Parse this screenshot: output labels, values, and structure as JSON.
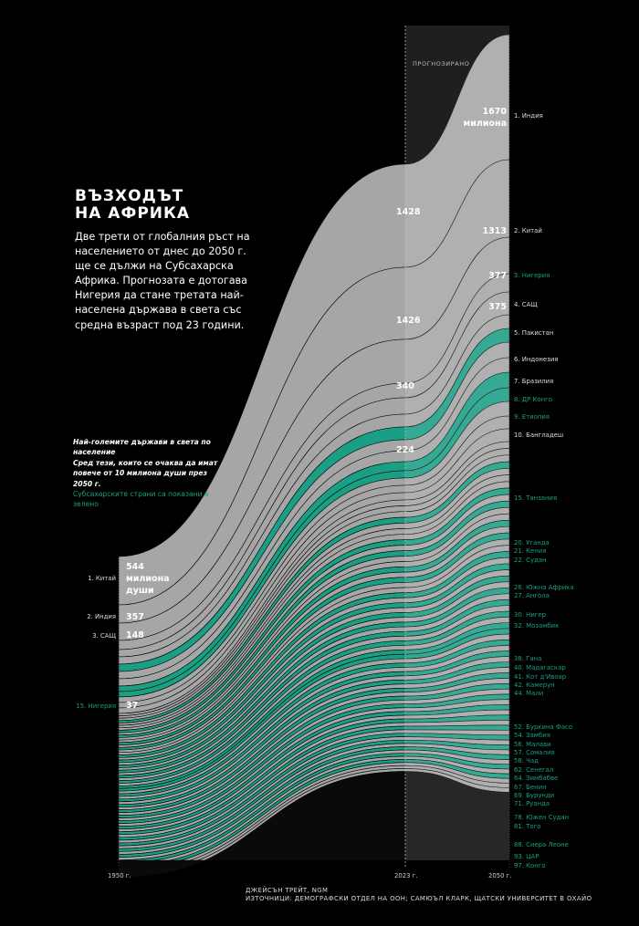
{
  "title": [
    "ВЪЗХОДЪТ",
    "НА АФРИКА"
  ],
  "intro": "Две трети от глобалния ръст на населението от днес до 2050 г. ще се дължи на Субсахарска Африка. Прогнозата е дотогава Нигерия да стане третата най-населена държава в света със средна възраст под 23 години.",
  "legend": {
    "line1": "Най-големите държави в света по население",
    "line2": "Сред тези, които се очаква да имат повече от 10 милиона души през 2050 г.",
    "line3": "Субсахарските страни са показани в зелено"
  },
  "forecast_label": "ПРОГНОЗИРАНО",
  "credits": [
    "ДЖЕЙСЪН ТРЕЙТ, NGM",
    "ИЗТОЧНИЦИ: ДЕМОГРАФСКИ ОТДЕЛ НА ООН; САМЮЪЛ КЛАРК, ЩАТСКИ УНИВЕРСИТЕТ В ОХАЙО"
  ],
  "colors": {
    "background": "#000000",
    "gray": "#a6a6a6",
    "green": "#1a9e84",
    "forecast_shade": "#ffffff"
  },
  "chart_data": {
    "type": "area",
    "x": [
      "1950 г.",
      "2023 г.",
      "2050 г."
    ],
    "unit": "милиона души",
    "value_labels": {
      "1950": [
        {
          "country": "Китай",
          "value": 544,
          "text": "544",
          "extra": [
            "милиона",
            "души"
          ]
        },
        {
          "country": "Индия",
          "value": 357,
          "text": "357"
        },
        {
          "country": "САЩ",
          "value": 148,
          "text": "148"
        },
        {
          "country": "Нигерия",
          "value": 37,
          "text": "37"
        }
      ],
      "2023": [
        {
          "country": "Индия",
          "value": 1428,
          "text": "1428"
        },
        {
          "country": "Китай",
          "value": 1426,
          "text": "1426"
        },
        {
          "country": "САЩ",
          "value": 340,
          "text": "340"
        },
        {
          "country": "Нигерия",
          "value": 224,
          "text": "224"
        }
      ],
      "2050": [
        {
          "country": "Индия",
          "value": 1670,
          "text": "1670",
          "extra": [
            "милиона"
          ]
        },
        {
          "country": "Китай",
          "value": 1313,
          "text": "1313"
        },
        {
          "country": "Нигерия",
          "value": 377,
          "text": "377"
        },
        {
          "country": "САЩ",
          "value": 375,
          "text": "375"
        }
      ]
    },
    "labels_1950": [
      {
        "text": "1. Китай",
        "green": false
      },
      {
        "text": "2. Индия",
        "green": false
      },
      {
        "text": "3. САЩ",
        "green": false
      },
      {
        "text": "15. Нигерия",
        "green": true
      }
    ],
    "ranks_2050": [
      {
        "text": "1. Индия",
        "green": false
      },
      {
        "text": "2. Китай",
        "green": false
      },
      {
        "text": "3. Нигерия",
        "green": true
      },
      {
        "text": "4. САЩ",
        "green": false
      },
      {
        "text": "5. Пакистан",
        "green": false
      },
      {
        "text": "6. Индонезия",
        "green": false
      },
      {
        "text": "7. Бразилия",
        "green": false
      },
      {
        "text": "8. ДР Конго",
        "green": true
      },
      {
        "text": "9. Етиопия",
        "green": true
      },
      {
        "text": "10. Бангладеш",
        "green": false
      },
      {
        "text": "15. Танзания",
        "green": true
      },
      {
        "text": "20. Уганда",
        "green": true
      },
      {
        "text": "21. Кения",
        "green": true
      },
      {
        "text": "22. Судан",
        "green": true
      },
      {
        "text": "26. Южна Африка",
        "green": true
      },
      {
        "text": "27. Ангола",
        "green": true
      },
      {
        "text": "30. Нигер",
        "green": true
      },
      {
        "text": "32. Мозамбик",
        "green": true
      },
      {
        "text": "38. Гана",
        "green": true
      },
      {
        "text": "40. Мадагаскар",
        "green": true
      },
      {
        "text": "41. Кот д'Ивоар",
        "green": true
      },
      {
        "text": "42. Камерун",
        "green": true
      },
      {
        "text": "44. Мали",
        "green": true
      },
      {
        "text": "52. Буркина Фасо",
        "green": true
      },
      {
        "text": "54. Замбия",
        "green": true
      },
      {
        "text": "56. Малави",
        "green": true
      },
      {
        "text": "57. Сомалия",
        "green": true
      },
      {
        "text": "58. Чад",
        "green": true
      },
      {
        "text": "62. Сенегал",
        "green": true
      },
      {
        "text": "64. Зимбабве",
        "green": true
      },
      {
        "text": "67. Бенин",
        "green": true
      },
      {
        "text": "69. Бурунди",
        "green": true
      },
      {
        "text": "71. Руанда",
        "green": true
      },
      {
        "text": "78. Южен Судан",
        "green": true
      },
      {
        "text": "81. Того",
        "green": true
      },
      {
        "text": "88. Сиера Леоне",
        "green": true
      },
      {
        "text": "93. ЦАР",
        "green": true
      },
      {
        "text": "97. Конго",
        "green": true
      }
    ]
  }
}
